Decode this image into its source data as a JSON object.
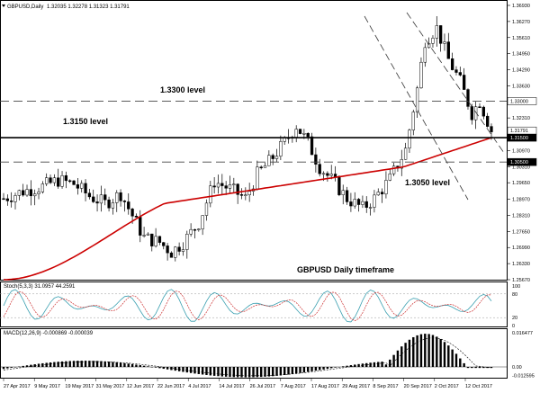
{
  "header": {
    "symbol": "GBPUSD,Daily",
    "ohlc": "1.32035 1.32278 1.31323 1.31791"
  },
  "price_axis": {
    "ticks": [
      "1.36930",
      "1.36270",
      "1.35610",
      "1.34950",
      "1.34290",
      "1.33630",
      "1.32970",
      "1.32310",
      "1.31650",
      "1.30970",
      "1.30310",
      "1.29650",
      "1.28970",
      "1.28310",
      "1.27650",
      "1.26990",
      "1.26330",
      "1.25670"
    ],
    "badges": [
      {
        "label": "1.33000",
        "type": "level"
      },
      {
        "label": "1.31791",
        "type": "current"
      },
      {
        "label": "1.31500",
        "type": "level-dark"
      },
      {
        "label": "1.30500",
        "type": "level-dark"
      }
    ]
  },
  "annotations": {
    "level_1330": "1.3300 level",
    "level_1315": "1.3150 level",
    "level_1305": "1.3050 level",
    "timeframe": "GBPUSD Daily timeframe"
  },
  "stoch": {
    "label": "Stoch(5,3,3) 31.0957 44.2591",
    "ticks": [
      "100",
      "80",
      "20",
      "0"
    ]
  },
  "macd": {
    "label": "MACD(12,26,9) -0.000869 -0.000039",
    "ticks": [
      "0.016477",
      "0.00",
      "-0.012595"
    ]
  },
  "date_axis": {
    "labels": [
      "27 Apr 2017",
      "9 May 2017",
      "19 May 2017",
      "31 May 2017",
      "12 Jun 2017",
      "22 Jun 2017",
      "4 Jul 2017",
      "14 Jul 2017",
      "26 Jul 2017",
      "7 Aug 2017",
      "17 Aug 2017",
      "29 Aug 2017",
      "8 Sep 2017",
      "20 Sep 2017",
      "2 Oct 2017",
      "12 Oct 2017"
    ]
  },
  "chart_data": {
    "type": "candlestick",
    "title": "GBPUSD Daily timeframe",
    "y_range": [
      1.2567,
      1.3693
    ],
    "ma_color": "#cc0000",
    "bull_color": "#ffffff",
    "bear_color": "#000000",
    "levels": [
      1.33,
      1.315,
      1.305
    ]
  }
}
